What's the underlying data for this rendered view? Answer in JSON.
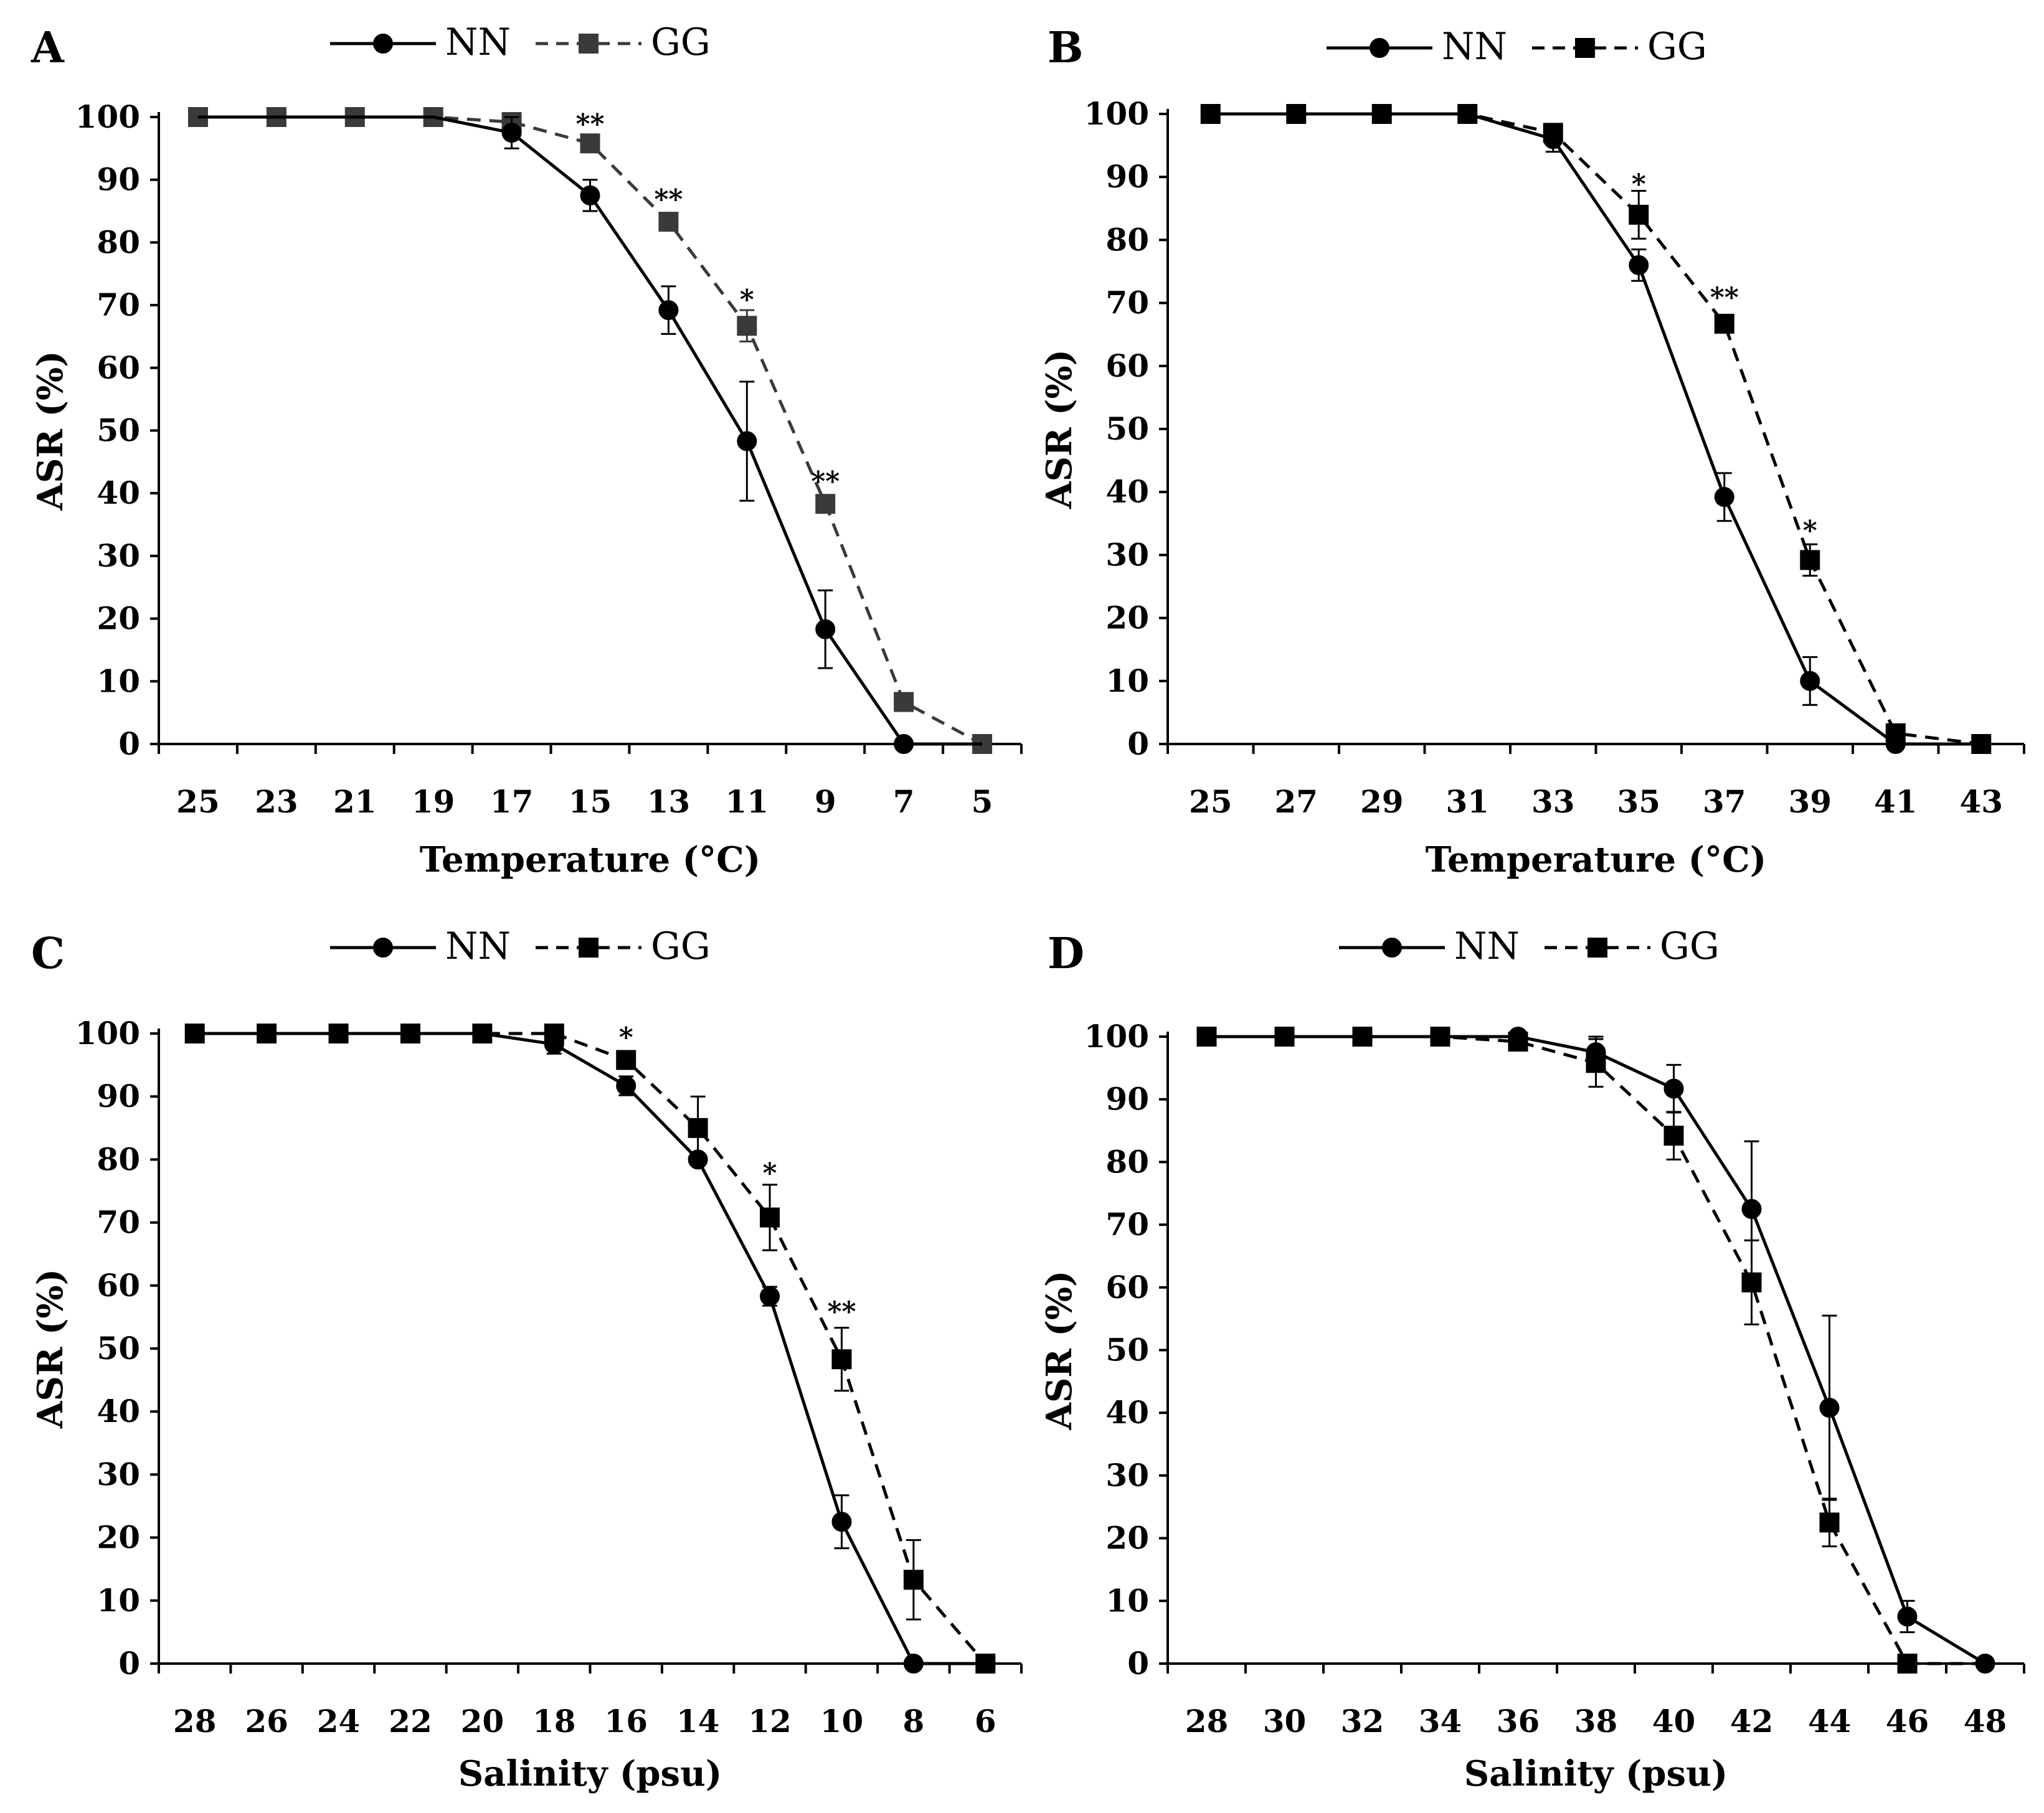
{
  "figure": {
    "colors": {
      "nn": "#000000",
      "gg_panel_a": "#3a3a3a",
      "gg": "#000000",
      "axis": "#000000"
    },
    "legend": {
      "nn_label": "NN",
      "gg_label": "GG"
    }
  },
  "chart_data": [
    {
      "panel": "A",
      "type": "line",
      "title": "",
      "xlabel": "Temperature (°C)",
      "ylabel": "ASR (%)",
      "ylim": [
        0,
        100
      ],
      "yticks": [
        "0",
        "10",
        "20",
        "30",
        "40",
        "50",
        "60",
        "70",
        "80",
        "90",
        "100"
      ],
      "categories": [
        "25",
        "23",
        "21",
        "19",
        "17",
        "15",
        "13",
        "11",
        "9",
        "7",
        "5"
      ],
      "series": [
        {
          "name": "NN",
          "line": "solid",
          "marker": "circle",
          "values": [
            100,
            100,
            100,
            100,
            97.5,
            87.5,
            69.2,
            48.3,
            18.3,
            0,
            0
          ],
          "errors": [
            0,
            0,
            0,
            0,
            2.5,
            2.5,
            3.8,
            9.5,
            6.2,
            0,
            0
          ],
          "drawn": [
            false,
            false,
            false,
            false,
            true,
            true,
            true,
            true,
            true,
            true,
            false
          ]
        },
        {
          "name": "GG",
          "line": "dashed",
          "marker": "square",
          "values": [
            100,
            100,
            100,
            100,
            99.2,
            95.8,
            83.3,
            66.7,
            38.3,
            6.7,
            0
          ],
          "errors": [
            0,
            0,
            0,
            0,
            0,
            0,
            0,
            2.5,
            0,
            0,
            0
          ],
          "drawn": [
            true,
            true,
            true,
            true,
            true,
            true,
            true,
            true,
            true,
            true,
            true
          ]
        }
      ],
      "annotations": [
        {
          "category": "15",
          "text": "**",
          "y": 98
        },
        {
          "category": "13",
          "text": "**",
          "y": 86
        },
        {
          "category": "11",
          "text": "*",
          "y": 70
        },
        {
          "category": "9",
          "text": "**",
          "y": 41
        }
      ]
    },
    {
      "panel": "B",
      "type": "line",
      "title": "",
      "xlabel": "Temperature (°C)",
      "ylabel": "ASR (%)",
      "ylim": [
        0,
        100
      ],
      "yticks": [
        "0",
        "10",
        "20",
        "30",
        "40",
        "50",
        "60",
        "70",
        "80",
        "90",
        "100"
      ],
      "categories": [
        "25",
        "27",
        "29",
        "31",
        "33",
        "35",
        "37",
        "39",
        "41",
        "43"
      ],
      "series": [
        {
          "name": "NN",
          "line": "solid",
          "marker": "circle",
          "values": [
            100,
            100,
            100,
            100,
            96,
            76,
            39.2,
            10,
            0,
            0
          ],
          "errors": [
            0,
            0,
            0,
            0,
            2,
            2.5,
            3.8,
            3.8,
            0,
            0
          ],
          "drawn": [
            false,
            false,
            false,
            false,
            true,
            true,
            true,
            true,
            true,
            false
          ]
        },
        {
          "name": "GG",
          "line": "dashed",
          "marker": "square",
          "values": [
            100,
            100,
            100,
            100,
            97,
            84,
            66.7,
            29.2,
            1.7,
            0
          ],
          "errors": [
            0,
            0,
            0,
            0,
            0,
            3.8,
            0,
            2.5,
            0,
            0
          ],
          "drawn": [
            true,
            true,
            true,
            true,
            true,
            true,
            true,
            true,
            true,
            true
          ]
        }
      ],
      "annotations": [
        {
          "category": "35",
          "text": "*",
          "y": 88
        },
        {
          "category": "37",
          "text": "**",
          "y": 70
        },
        {
          "category": "39",
          "text": "*",
          "y": 33
        }
      ]
    },
    {
      "panel": "C",
      "type": "line",
      "title": "",
      "xlabel": "Salinity (psu)",
      "ylabel": "ASR (%)",
      "ylim": [
        0,
        100
      ],
      "yticks": [
        "0",
        "10",
        "20",
        "30",
        "40",
        "50",
        "60",
        "70",
        "80",
        "90",
        "100"
      ],
      "categories": [
        "28",
        "26",
        "24",
        "22",
        "20",
        "18",
        "16",
        "14",
        "12",
        "10",
        "8",
        "6"
      ],
      "series": [
        {
          "name": "NN",
          "line": "solid",
          "marker": "circle",
          "values": [
            100,
            100,
            100,
            100,
            100,
            98.3,
            91.7,
            80,
            58.3,
            22.5,
            0,
            0
          ],
          "errors": [
            0,
            0,
            0,
            0,
            0,
            1.5,
            1.5,
            0,
            1.5,
            4.2,
            0,
            0
          ],
          "drawn": [
            false,
            false,
            false,
            false,
            false,
            true,
            true,
            true,
            true,
            true,
            true,
            false
          ]
        },
        {
          "name": "GG",
          "line": "dashed",
          "marker": "square",
          "values": [
            100,
            100,
            100,
            100,
            100,
            100,
            95.8,
            85,
            70.8,
            48.3,
            13.3,
            0
          ],
          "errors": [
            0,
            0,
            0,
            0,
            0,
            0,
            0,
            5,
            5.2,
            5,
            6.3,
            0
          ],
          "drawn": [
            true,
            true,
            true,
            true,
            true,
            true,
            true,
            true,
            true,
            true,
            true,
            true
          ]
        }
      ],
      "annotations": [
        {
          "category": "16",
          "text": "*",
          "y": 98.5
        },
        {
          "category": "12",
          "text": "*",
          "y": 77
        },
        {
          "category": "10",
          "text": "**",
          "y": 55
        }
      ]
    },
    {
      "panel": "D",
      "type": "line",
      "title": "",
      "xlabel": "Salinity (psu)",
      "ylabel": "ASR (%)",
      "ylim": [
        0,
        100
      ],
      "yticks": [
        "0",
        "10",
        "20",
        "30",
        "40",
        "50",
        "60",
        "70",
        "80",
        "90",
        "100"
      ],
      "categories": [
        "28",
        "30",
        "32",
        "34",
        "36",
        "38",
        "40",
        "42",
        "44",
        "46",
        "48"
      ],
      "series": [
        {
          "name": "NN",
          "line": "solid",
          "marker": "circle",
          "values": [
            100,
            100,
            100,
            100,
            100,
            97.5,
            91.7,
            72.5,
            40.8,
            7.5,
            0
          ],
          "errors": [
            0,
            0,
            0,
            0,
            0,
            2.5,
            3.8,
            10.8,
            14.7,
            2.5,
            0
          ],
          "drawn": [
            false,
            false,
            false,
            false,
            true,
            true,
            true,
            true,
            true,
            true,
            true
          ]
        },
        {
          "name": "GG",
          "line": "dashed",
          "marker": "square",
          "values": [
            100,
            100,
            100,
            100,
            99.2,
            95.8,
            84.2,
            60.8,
            22.5,
            0,
            0
          ],
          "errors": [
            0,
            0,
            0,
            0,
            0,
            3.8,
            3.8,
            6.7,
            3.8,
            0,
            0
          ],
          "drawn": [
            true,
            true,
            true,
            true,
            true,
            true,
            true,
            true,
            true,
            true,
            false
          ]
        }
      ],
      "annotations": []
    }
  ]
}
